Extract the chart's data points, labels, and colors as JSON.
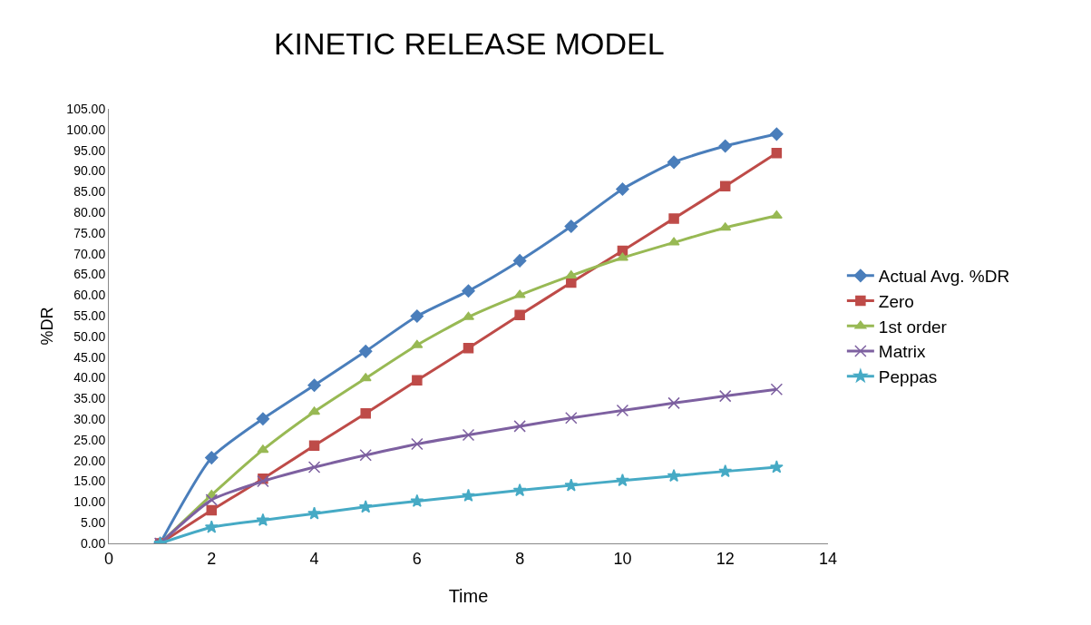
{
  "chart_data": {
    "type": "line",
    "title": "KINETIC RELEASE MODEL",
    "xlabel": "Time",
    "ylabel": "%DR",
    "x": [
      1,
      2,
      3,
      4,
      5,
      6,
      7,
      8,
      9,
      10,
      11,
      12,
      13
    ],
    "series": [
      {
        "name": "Actual Avg. %DR",
        "color": "#4a7ebb",
        "marker": "diamond",
        "values": [
          0,
          20.7,
          30.1,
          38.2,
          46.4,
          54.9,
          61.0,
          68.3,
          76.6,
          85.6,
          92.1,
          96.0,
          98.9
        ]
      },
      {
        "name": "Zero",
        "color": "#be4b48",
        "marker": "square",
        "values": [
          0,
          8.0,
          15.6,
          23.6,
          31.4,
          39.4,
          47.2,
          55.2,
          63.0,
          70.7,
          78.5,
          86.3,
          94.3
        ]
      },
      {
        "name": "1st order",
        "color": "#98b954",
        "marker": "triangle",
        "values": [
          0,
          11.7,
          22.6,
          31.8,
          39.9,
          47.9,
          54.7,
          60.0,
          64.7,
          69.0,
          72.7,
          76.3,
          79.2
        ]
      },
      {
        "name": "Matrix",
        "color": "#7d60a0",
        "marker": "cross",
        "values": [
          0,
          10.5,
          15.0,
          18.4,
          21.3,
          24.0,
          26.2,
          28.3,
          30.3,
          32.1,
          33.9,
          35.6,
          37.2
        ]
      },
      {
        "name": "Peppas",
        "color": "#46aac5",
        "marker": "star",
        "values": [
          0,
          3.9,
          5.6,
          7.2,
          8.8,
          10.2,
          11.5,
          12.8,
          14.0,
          15.2,
          16.3,
          17.4,
          18.4
        ]
      }
    ],
    "xlim": [
      0,
      14
    ],
    "xticks": [
      0,
      2,
      4,
      6,
      8,
      10,
      12,
      14
    ],
    "ylim": [
      0,
      105
    ],
    "yticks": [
      {
        "value": 0,
        "label": "0.00"
      },
      {
        "value": 5,
        "label": "5.00"
      },
      {
        "value": 10,
        "label": "10.00"
      },
      {
        "value": 15,
        "label": "15.00"
      },
      {
        "value": 20,
        "label": "20.00"
      },
      {
        "value": 25,
        "label": "25.00"
      },
      {
        "value": 30,
        "label": "30.00"
      },
      {
        "value": 35,
        "label": "35.00"
      },
      {
        "value": 40,
        "label": "40.00"
      },
      {
        "value": 45,
        "label": "45.00"
      },
      {
        "value": 50,
        "label": "50.00"
      },
      {
        "value": 55,
        "label": "55.00"
      },
      {
        "value": 60,
        "label": "60.00"
      },
      {
        "value": 65,
        "label": "65.00"
      },
      {
        "value": 70,
        "label": "70.00"
      },
      {
        "value": 75,
        "label": "75.00"
      },
      {
        "value": 80,
        "label": "80.00"
      },
      {
        "value": 85,
        "label": "85.00"
      },
      {
        "value": 90,
        "label": "90.00"
      },
      {
        "value": 95,
        "label": "95.00"
      },
      {
        "value": 100,
        "label": "100.00"
      },
      {
        "value": 105,
        "label": "105.00"
      }
    ],
    "legend": "right",
    "line_style": "solid"
  }
}
